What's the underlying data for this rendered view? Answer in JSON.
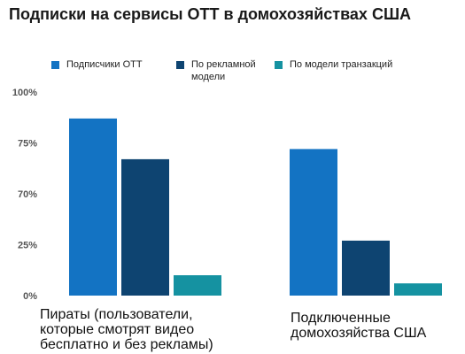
{
  "chart_data": {
    "type": "bar",
    "title": "Подписки на сервисы OTT в домохозяйствах США",
    "categories": [
      [
        "Пираты (пользователи,",
        "которые смотрят видео",
        "бесплатно и без рекламы)"
      ],
      [
        "Подключенные",
        "домохозяйства США"
      ]
    ],
    "series": [
      {
        "name": "Подписчики OTT",
        "color": "#1373c3",
        "values": [
          87,
          72
        ]
      },
      {
        "name": "По рекламной модели",
        "color": "#0e4471",
        "values": [
          67,
          27
        ]
      },
      {
        "name": "По модели транзакций",
        "color": "#1592a1",
        "values": [
          10,
          6
        ]
      }
    ],
    "ylim": [
      0,
      100
    ],
    "y_ticks": [
      "0%",
      "25%",
      "70%",
      "75%",
      "100%"
    ],
    "grid": false,
    "legend_position": "top"
  }
}
